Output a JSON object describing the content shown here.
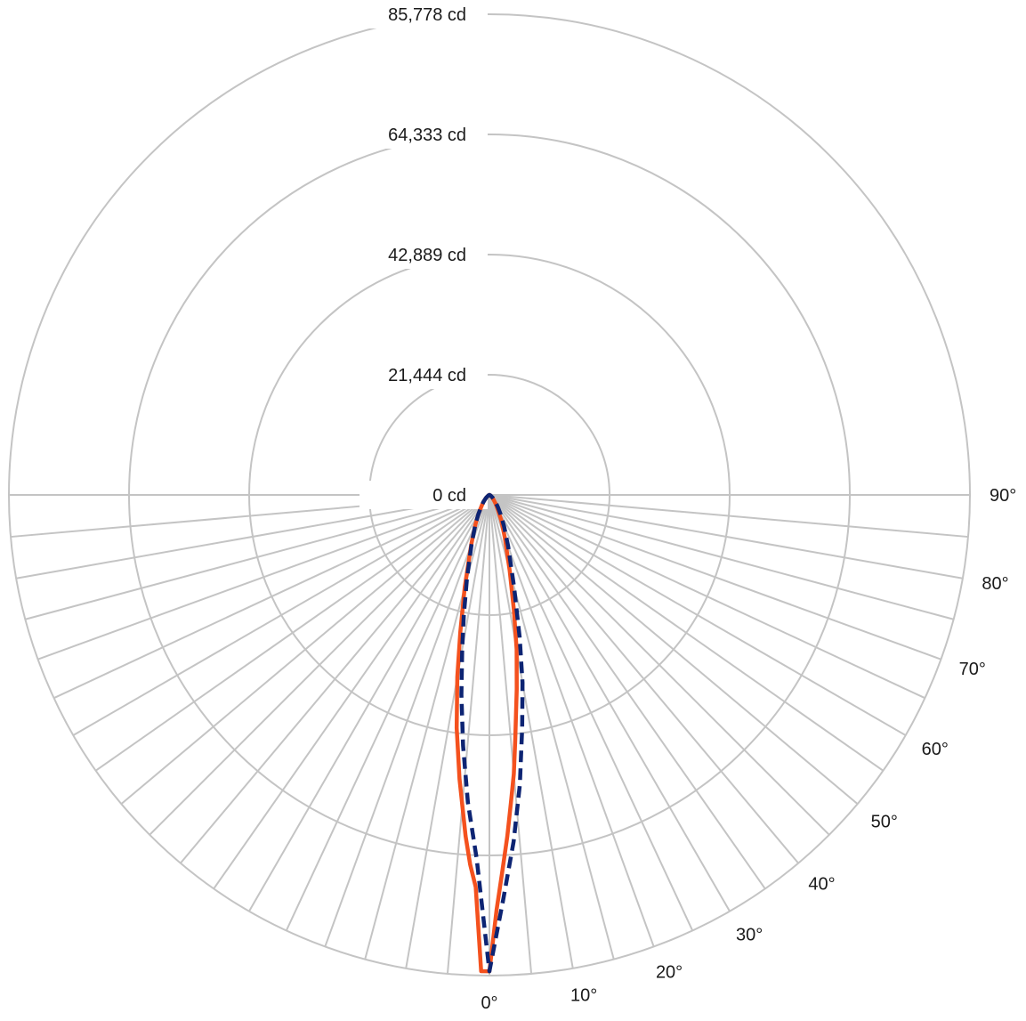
{
  "chart_data": {
    "type": "polar",
    "title": "",
    "radial_unit": "cd",
    "radial_max": 85778,
    "radial_ticks": [
      {
        "value": 0,
        "label": "0 cd"
      },
      {
        "value": 21444,
        "label": "21,444 cd"
      },
      {
        "value": 42889,
        "label": "42,889 cd"
      },
      {
        "value": 64333,
        "label": "64,333 cd"
      },
      {
        "value": 85778,
        "label": "85,778 cd"
      }
    ],
    "angle_labels": [
      "0°",
      "10°",
      "20°",
      "30°",
      "40°",
      "50°",
      "60°",
      "70°",
      "80°",
      "90°"
    ],
    "spoke_step_deg": 5,
    "grid": true,
    "series": [
      {
        "color": "#f4511e",
        "style": "solid",
        "angles": [
          -90,
          -80,
          -70,
          -60,
          -50,
          -45,
          -40,
          -35,
          -30,
          -25,
          -20,
          -15,
          -12,
          -10,
          -8,
          -6,
          -4,
          -3,
          -2,
          -1,
          0,
          1,
          2,
          3,
          4,
          5,
          6,
          8,
          10,
          12,
          15,
          20,
          25,
          30,
          35,
          40,
          45,
          50,
          60,
          70,
          80,
          90
        ],
        "values": [
          0,
          10,
          80,
          250,
          700,
          1100,
          1700,
          2500,
          3900,
          6000,
          9500,
          17000,
          25000,
          33000,
          42000,
          51000,
          61000,
          66000,
          70000,
          85000,
          85000,
          74000,
          67000,
          61000,
          55000,
          50000,
          44000,
          35000,
          28000,
          21000,
          14000,
          8000,
          5000,
          3000,
          1900,
          1200,
          800,
          500,
          200,
          60,
          10,
          0
        ]
      },
      {
        "color": "#0d2473",
        "style": "dashed",
        "angles": [
          -90,
          -80,
          -70,
          -60,
          -50,
          -45,
          -40,
          -35,
          -30,
          -25,
          -20,
          -15,
          -12,
          -10,
          -8,
          -6,
          -4,
          -2,
          0,
          2,
          4,
          6,
          8,
          10,
          12,
          15,
          20,
          25,
          30,
          35,
          40,
          45,
          50,
          60,
          70,
          80,
          90
        ],
        "values": [
          0,
          10,
          80,
          250,
          700,
          1100,
          1700,
          2500,
          3900,
          6000,
          9300,
          15500,
          22000,
          28000,
          36000,
          45000,
          55000,
          65000,
          85000,
          72000,
          62000,
          52000,
          42000,
          34000,
          26000,
          17000,
          9800,
          6200,
          4000,
          2600,
          1700,
          1100,
          700,
          250,
          80,
          10,
          0
        ]
      }
    ]
  }
}
